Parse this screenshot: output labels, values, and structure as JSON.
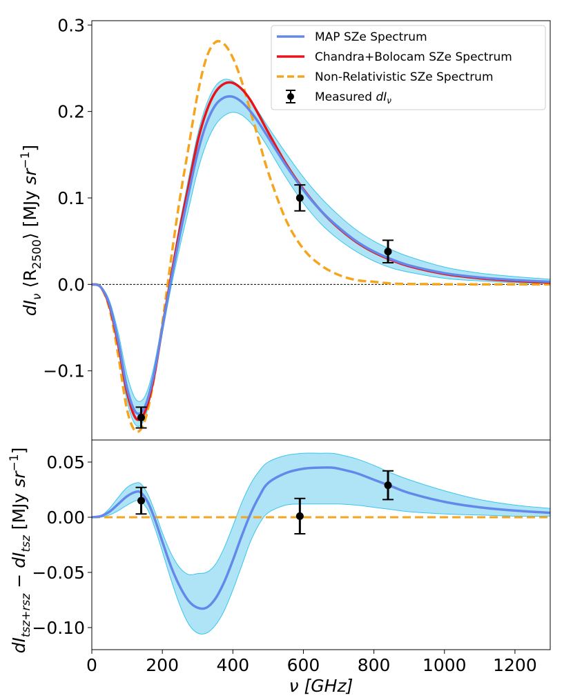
{
  "colors": {
    "map": "#6488ea",
    "chandra": "#e8141b",
    "nonrel": "#f5a51d",
    "band_fill": "#aee4f6",
    "band_edge": "#38c6ec",
    "measured": "#000000",
    "zero_line": "#000000"
  },
  "chart_data": [
    {
      "type": "line",
      "panel": "top",
      "ylabel": "dIν ⟨R2500⟩ [MJy sr−1]",
      "ylabel_parts": {
        "main": "dI",
        "sub": "ν",
        "mid": " ⟨R",
        "sub2": "2500",
        "close": "⟩ [MJy ",
        "unit": "sr",
        "sup": "−1",
        "end": "]"
      },
      "xlim": [
        0,
        1300
      ],
      "ylim": [
        -0.18,
        0.305
      ],
      "yticks": [
        -0.1,
        0.0,
        0.1,
        0.2,
        0.3
      ],
      "ytick_labels": [
        "−0.1",
        "0.0",
        "0.1",
        "0.2",
        "0.3"
      ],
      "zero_line": "dashed",
      "legend": {
        "position": "top-right",
        "entries": [
          {
            "label": "MAP SZe Spectrum",
            "kind": "line-map"
          },
          {
            "label": "Chandra+Bolocam SZe Spectrum",
            "kind": "line-chandra"
          },
          {
            "label": "Non-Relativistic SZe Spectrum",
            "kind": "line-nonrel"
          },
          {
            "label": "Measured ",
            "label_math": "dI",
            "label_sub": "ν",
            "kind": "errorbar"
          }
        ]
      },
      "series": [
        {
          "name": "Chandra+Bolocam SZe Spectrum",
          "x": [
            0,
            25,
            50,
            75,
            100,
            125,
            150,
            175,
            200,
            225,
            250,
            275,
            300,
            325,
            350,
            375,
            400,
            425,
            450,
            475,
            500,
            550,
            600,
            650,
            700,
            750,
            800,
            850,
            900,
            1000,
            1100,
            1200,
            1300
          ],
          "y": [
            0,
            -0.003,
            -0.025,
            -0.07,
            -0.125,
            -0.155,
            -0.148,
            -0.11,
            -0.05,
            0.01,
            0.065,
            0.115,
            0.165,
            0.2,
            0.222,
            0.232,
            0.233,
            0.226,
            0.213,
            0.195,
            0.176,
            0.14,
            0.11,
            0.085,
            0.065,
            0.049,
            0.037,
            0.028,
            0.021,
            0.012,
            0.007,
            0.004,
            0.002
          ]
        },
        {
          "name": "MAP SZe Spectrum",
          "x": [
            0,
            25,
            50,
            75,
            100,
            125,
            150,
            175,
            200,
            225,
            250,
            275,
            300,
            325,
            350,
            375,
            400,
            425,
            450,
            475,
            500,
            550,
            600,
            650,
            700,
            750,
            800,
            850,
            900,
            1000,
            1100,
            1200,
            1300
          ],
          "y": [
            0,
            -0.003,
            -0.023,
            -0.066,
            -0.12,
            -0.148,
            -0.142,
            -0.106,
            -0.05,
            0.006,
            0.058,
            0.106,
            0.152,
            0.186,
            0.207,
            0.216,
            0.217,
            0.211,
            0.2,
            0.186,
            0.17,
            0.138,
            0.109,
            0.085,
            0.066,
            0.05,
            0.038,
            0.029,
            0.022,
            0.013,
            0.008,
            0.005,
            0.003
          ]
        },
        {
          "name": "Non-Relativistic SZe Spectrum",
          "x": [
            0,
            25,
            50,
            75,
            100,
            125,
            150,
            175,
            200,
            225,
            250,
            275,
            300,
            325,
            350,
            375,
            400,
            425,
            450,
            475,
            500,
            550,
            600,
            650,
            700,
            750,
            800,
            850,
            900,
            1000,
            1100,
            1200,
            1300
          ],
          "y": [
            0,
            -0.003,
            -0.028,
            -0.082,
            -0.145,
            -0.17,
            -0.158,
            -0.112,
            -0.045,
            0.03,
            0.1,
            0.16,
            0.22,
            0.262,
            0.28,
            0.278,
            0.262,
            0.235,
            0.2,
            0.165,
            0.13,
            0.075,
            0.041,
            0.022,
            0.011,
            0.005,
            0.003,
            0.001,
            0.0005,
            0.0001,
            0,
            0,
            0
          ]
        }
      ],
      "band": {
        "name": "MAP uncertainty",
        "x": [
          0,
          25,
          50,
          75,
          100,
          125,
          150,
          175,
          200,
          225,
          250,
          275,
          300,
          325,
          350,
          375,
          400,
          425,
          450,
          475,
          500,
          550,
          600,
          650,
          700,
          750,
          800,
          850,
          900,
          1000,
          1100,
          1200,
          1300
        ],
        "upper": [
          0,
          -0.002,
          -0.019,
          -0.056,
          -0.105,
          -0.133,
          -0.13,
          -0.097,
          -0.043,
          0.015,
          0.072,
          0.124,
          0.173,
          0.208,
          0.229,
          0.237,
          0.235,
          0.226,
          0.213,
          0.198,
          0.182,
          0.152,
          0.124,
          0.1,
          0.08,
          0.063,
          0.05,
          0.04,
          0.032,
          0.02,
          0.013,
          0.009,
          0.006
        ],
        "lower": [
          0,
          -0.004,
          -0.027,
          -0.076,
          -0.135,
          -0.163,
          -0.155,
          -0.114,
          -0.057,
          -0.003,
          0.044,
          0.088,
          0.131,
          0.163,
          0.184,
          0.195,
          0.199,
          0.196,
          0.187,
          0.174,
          0.158,
          0.124,
          0.094,
          0.07,
          0.052,
          0.038,
          0.027,
          0.019,
          0.014,
          0.007,
          0.004,
          0.002,
          0.001
        ]
      },
      "measured": {
        "name": "Measured dIν",
        "points": [
          {
            "x": 140,
            "y": -0.154,
            "err": 0.012
          },
          {
            "x": 590,
            "y": 0.1,
            "err": 0.015
          },
          {
            "x": 840,
            "y": 0.038,
            "err": 0.013
          }
        ]
      }
    },
    {
      "type": "line",
      "panel": "bottom",
      "xlabel": "ν [GHz]",
      "ylabel": "dItsz+rsz − dItsz [MJy sr−1]",
      "ylabel_parts": {
        "a": "dI",
        "asub": "tsz+rsz",
        "minus": " − ",
        "b": "dI",
        "bsub": "tsz",
        "unit_open": " [MJy ",
        "unit": "sr",
        "sup": "−1",
        "end": "]"
      },
      "xlim": [
        0,
        1300
      ],
      "ylim": [
        -0.12,
        0.07
      ],
      "xticks": [
        0,
        200,
        400,
        600,
        800,
        1000,
        1200
      ],
      "xtick_labels": [
        "0",
        "200",
        "400",
        "600",
        "800",
        "1000",
        "1200"
      ],
      "yticks": [
        -0.1,
        -0.05,
        0.0,
        0.05
      ],
      "ytick_labels": [
        "−0.10",
        "−0.05",
        "0.00",
        "0.05"
      ],
      "series": [
        {
          "name": "MAP SZe Spectrum residual",
          "x": [
            0,
            25,
            50,
            75,
            100,
            125,
            140,
            160,
            180,
            200,
            225,
            250,
            275,
            300,
            325,
            350,
            375,
            400,
            425,
            450,
            475,
            500,
            550,
            600,
            650,
            680,
            700,
            750,
            800,
            850,
            900,
            1000,
            1100,
            1200,
            1300
          ],
          "y": [
            0,
            0.001,
            0.005,
            0.012,
            0.019,
            0.023,
            0.022,
            0.013,
            -0.003,
            -0.022,
            -0.045,
            -0.063,
            -0.076,
            -0.082,
            -0.082,
            -0.074,
            -0.059,
            -0.039,
            -0.017,
            0.003,
            0.019,
            0.031,
            0.04,
            0.044,
            0.045,
            0.045,
            0.044,
            0.04,
            0.034,
            0.028,
            0.022,
            0.014,
            0.009,
            0.006,
            0.004
          ]
        },
        {
          "name": "Non-Relativistic SZe Spectrum residual",
          "x": [
            0,
            1300
          ],
          "y": [
            0,
            0
          ]
        }
      ],
      "band": {
        "name": "MAP residual uncertainty",
        "x": [
          0,
          25,
          50,
          75,
          100,
          125,
          140,
          160,
          180,
          200,
          225,
          250,
          275,
          300,
          325,
          350,
          375,
          400,
          425,
          450,
          475,
          500,
          550,
          600,
          650,
          680,
          700,
          750,
          800,
          850,
          900,
          1000,
          1100,
          1200,
          1300
        ],
        "upper": [
          0,
          0.001,
          0.008,
          0.018,
          0.027,
          0.031,
          0.03,
          0.02,
          0.004,
          -0.014,
          -0.033,
          -0.046,
          -0.052,
          -0.051,
          -0.05,
          -0.043,
          -0.028,
          -0.008,
          0.013,
          0.03,
          0.042,
          0.05,
          0.056,
          0.058,
          0.058,
          0.058,
          0.057,
          0.053,
          0.047,
          0.04,
          0.034,
          0.024,
          0.016,
          0.011,
          0.008
        ],
        "lower": [
          0,
          0,
          0.002,
          0.006,
          0.011,
          0.015,
          0.014,
          0.006,
          -0.011,
          -0.031,
          -0.057,
          -0.08,
          -0.097,
          -0.105,
          -0.105,
          -0.098,
          -0.085,
          -0.066,
          -0.044,
          -0.022,
          -0.006,
          0.004,
          0.011,
          0.012,
          0.012,
          0.012,
          0.012,
          0.011,
          0.009,
          0.007,
          0.005,
          0.003,
          0.002,
          0.001,
          0.001
        ]
      },
      "measured": {
        "name": "Measured dIν residual",
        "points": [
          {
            "x": 140,
            "y": 0.015,
            "err": 0.012
          },
          {
            "x": 590,
            "y": 0.001,
            "err": 0.016
          },
          {
            "x": 840,
            "y": 0.029,
            "err": 0.013
          }
        ]
      }
    }
  ]
}
